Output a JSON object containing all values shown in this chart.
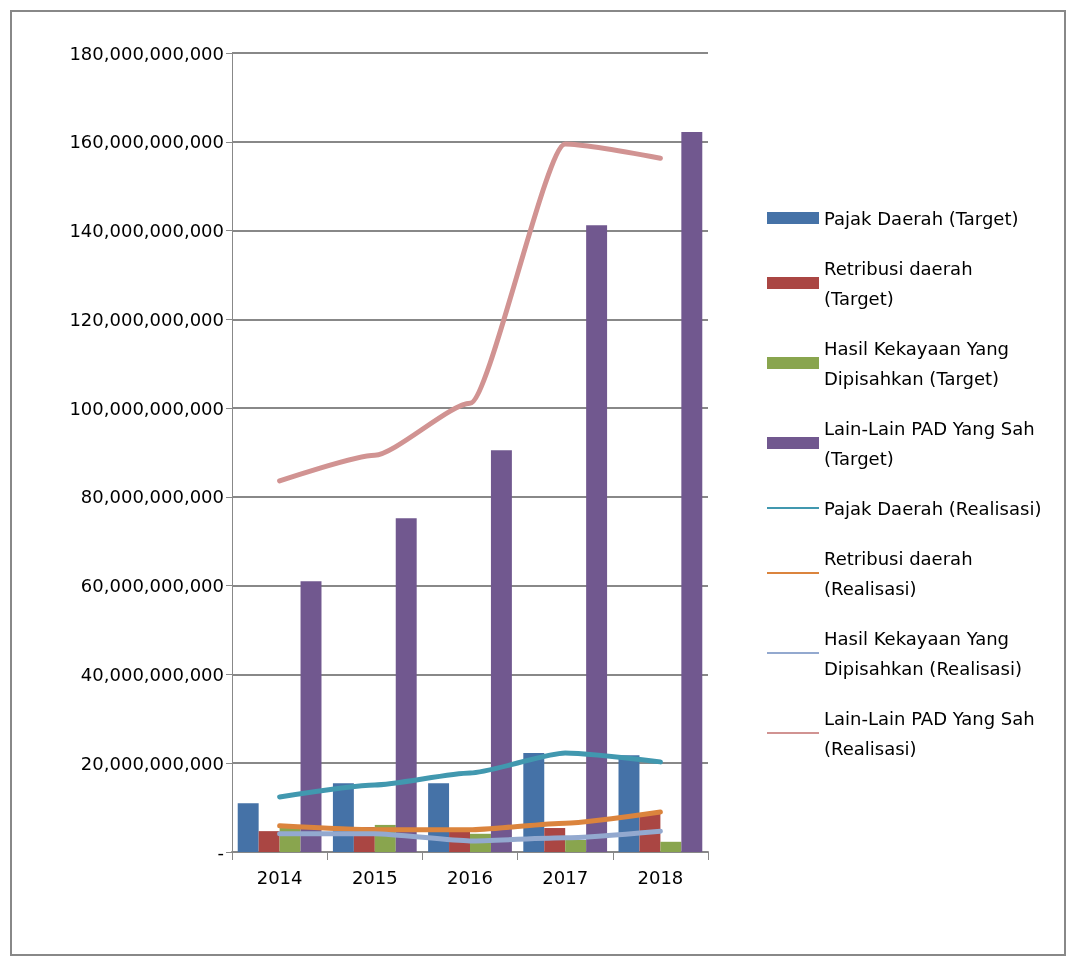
{
  "chart_data": {
    "type": "bar",
    "categories": [
      "2014",
      "2015",
      "2016",
      "2017",
      "2018"
    ],
    "series": [
      {
        "name": "Pajak Daerah (Target)",
        "color": "#4572a7",
        "values": [
          11000000000,
          15500000000,
          15500000000,
          22300000000,
          21800000000
        ]
      },
      {
        "name": "Retribusi daerah (Target)",
        "color": "#aa4643",
        "values": [
          4700000000,
          5600000000,
          5000000000,
          5400000000,
          8600000000
        ]
      },
      {
        "name": "Hasil Kekayaan Yang Dipisahkan (Target)",
        "color": "#89a54e",
        "values": [
          5400000000,
          6100000000,
          4100000000,
          2700000000,
          2300000000
        ]
      },
      {
        "name": "Lain-Lain PAD Yang Sah (Target)",
        "color": "#71588f",
        "values": [
          61000000000,
          75200000000,
          90500000000,
          141200000000,
          162200000000
        ]
      },
      {
        "name": "Pajak Daerah (Realisasi)",
        "type": "line",
        "color": "#4198af",
        "values": [
          12400000000,
          15100000000,
          17800000000,
          22300000000,
          20300000000
        ]
      },
      {
        "name": "Retribusi daerah (Realisasi)",
        "type": "line",
        "color": "#db843d",
        "values": [
          5900000000,
          5000000000,
          5000000000,
          6500000000,
          9000000000
        ]
      },
      {
        "name": "Hasil Kekayaan Yang Dipisahkan (Realisasi)",
        "type": "line",
        "color": "#93a9cf",
        "values": [
          4100000000,
          4100000000,
          2500000000,
          3200000000,
          4700000000
        ]
      },
      {
        "name": "Lain-Lain PAD Yang Sah (Realisasi)",
        "type": "line",
        "color": "#d19392",
        "values": [
          83600000000,
          89400000000,
          101100000000,
          159500000000,
          156300000000
        ]
      }
    ],
    "ylim": [
      0,
      180000000000
    ],
    "yticks": [
      {
        "value": 0,
        "label": "-"
      },
      {
        "value": 20000000000,
        "label": "20,000,000,000"
      },
      {
        "value": 40000000000,
        "label": "40,000,000,000"
      },
      {
        "value": 60000000000,
        "label": "60,000,000,000"
      },
      {
        "value": 80000000000,
        "label": "80,000,000,000"
      },
      {
        "value": 100000000000,
        "label": "100,000,000,000"
      },
      {
        "value": 120000000000,
        "label": "120,000,000,000"
      },
      {
        "value": 140000000000,
        "label": "140,000,000,000"
      },
      {
        "value": 160000000000,
        "label": "160,000,000,000"
      },
      {
        "value": 180000000000,
        "label": "180,000,000,000"
      }
    ],
    "grid": "y",
    "legend": "right",
    "marker": "none"
  }
}
